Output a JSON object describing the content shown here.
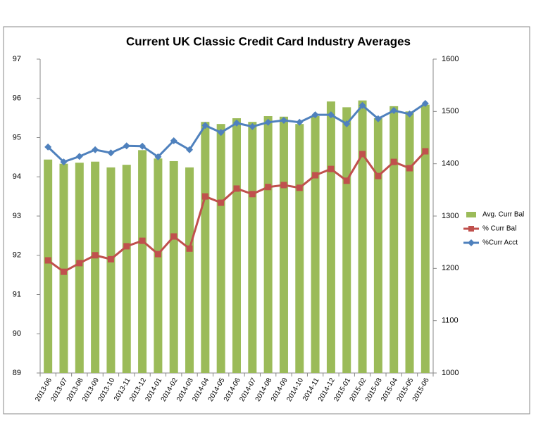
{
  "chart_data": {
    "type": "combo",
    "title": "Current UK Classic Credit Card Industry Averages",
    "categories": [
      "2013-06",
      "2013-07",
      "2013-08",
      "2013-09",
      "2013-10",
      "2013-11",
      "2013-12",
      "2014-01",
      "2014-02",
      "2014-03",
      "2014-04",
      "2014-05",
      "2014-06",
      "2014-07",
      "2014-08",
      "2014-09",
      "2014-10",
      "2014-11",
      "2014-12",
      "2015-01",
      "2015-02",
      "2015-03",
      "2015-04",
      "2015-05",
      "2015-06"
    ],
    "ylim": [
      89,
      97
    ],
    "yticks": [
      89,
      90,
      91,
      92,
      93,
      94,
      95,
      96,
      97
    ],
    "y2lim": [
      1000,
      1600
    ],
    "y2ticks": [
      1000,
      1100,
      1200,
      1300,
      1400,
      1500,
      1600
    ],
    "grid": false,
    "legend": "right",
    "series": [
      {
        "name": "Avg. Curr Bal",
        "type": "bar",
        "axis": "y2",
        "color": "#9bbb59",
        "values": [
          1408,
          1400,
          1402,
          1404,
          1393,
          1398,
          1426,
          1410,
          1405,
          1393,
          1480,
          1476,
          1487,
          1480,
          1491,
          1490,
          1476,
          1491,
          1519,
          1508,
          1521,
          1487,
          1510,
          1500,
          1513
        ]
      },
      {
        "name": "% Curr Bal",
        "type": "line",
        "marker": "square",
        "color": "#c0504d",
        "values": [
          91.87,
          91.58,
          91.8,
          92.0,
          91.9,
          92.23,
          92.37,
          92.03,
          92.48,
          92.17,
          93.5,
          93.34,
          93.7,
          93.56,
          93.74,
          93.79,
          93.72,
          94.04,
          94.2,
          93.9,
          94.58,
          94.02,
          94.38,
          94.22,
          94.65
        ]
      },
      {
        "name": "%Curr Acct",
        "type": "line",
        "marker": "diamond",
        "color": "#4f81bd",
        "values": [
          94.76,
          94.38,
          94.52,
          94.69,
          94.61,
          94.79,
          94.78,
          94.51,
          94.92,
          94.69,
          95.31,
          95.13,
          95.37,
          95.28,
          95.39,
          95.44,
          95.39,
          95.58,
          95.58,
          95.35,
          95.82,
          95.48,
          95.69,
          95.6,
          95.87
        ]
      }
    ]
  }
}
